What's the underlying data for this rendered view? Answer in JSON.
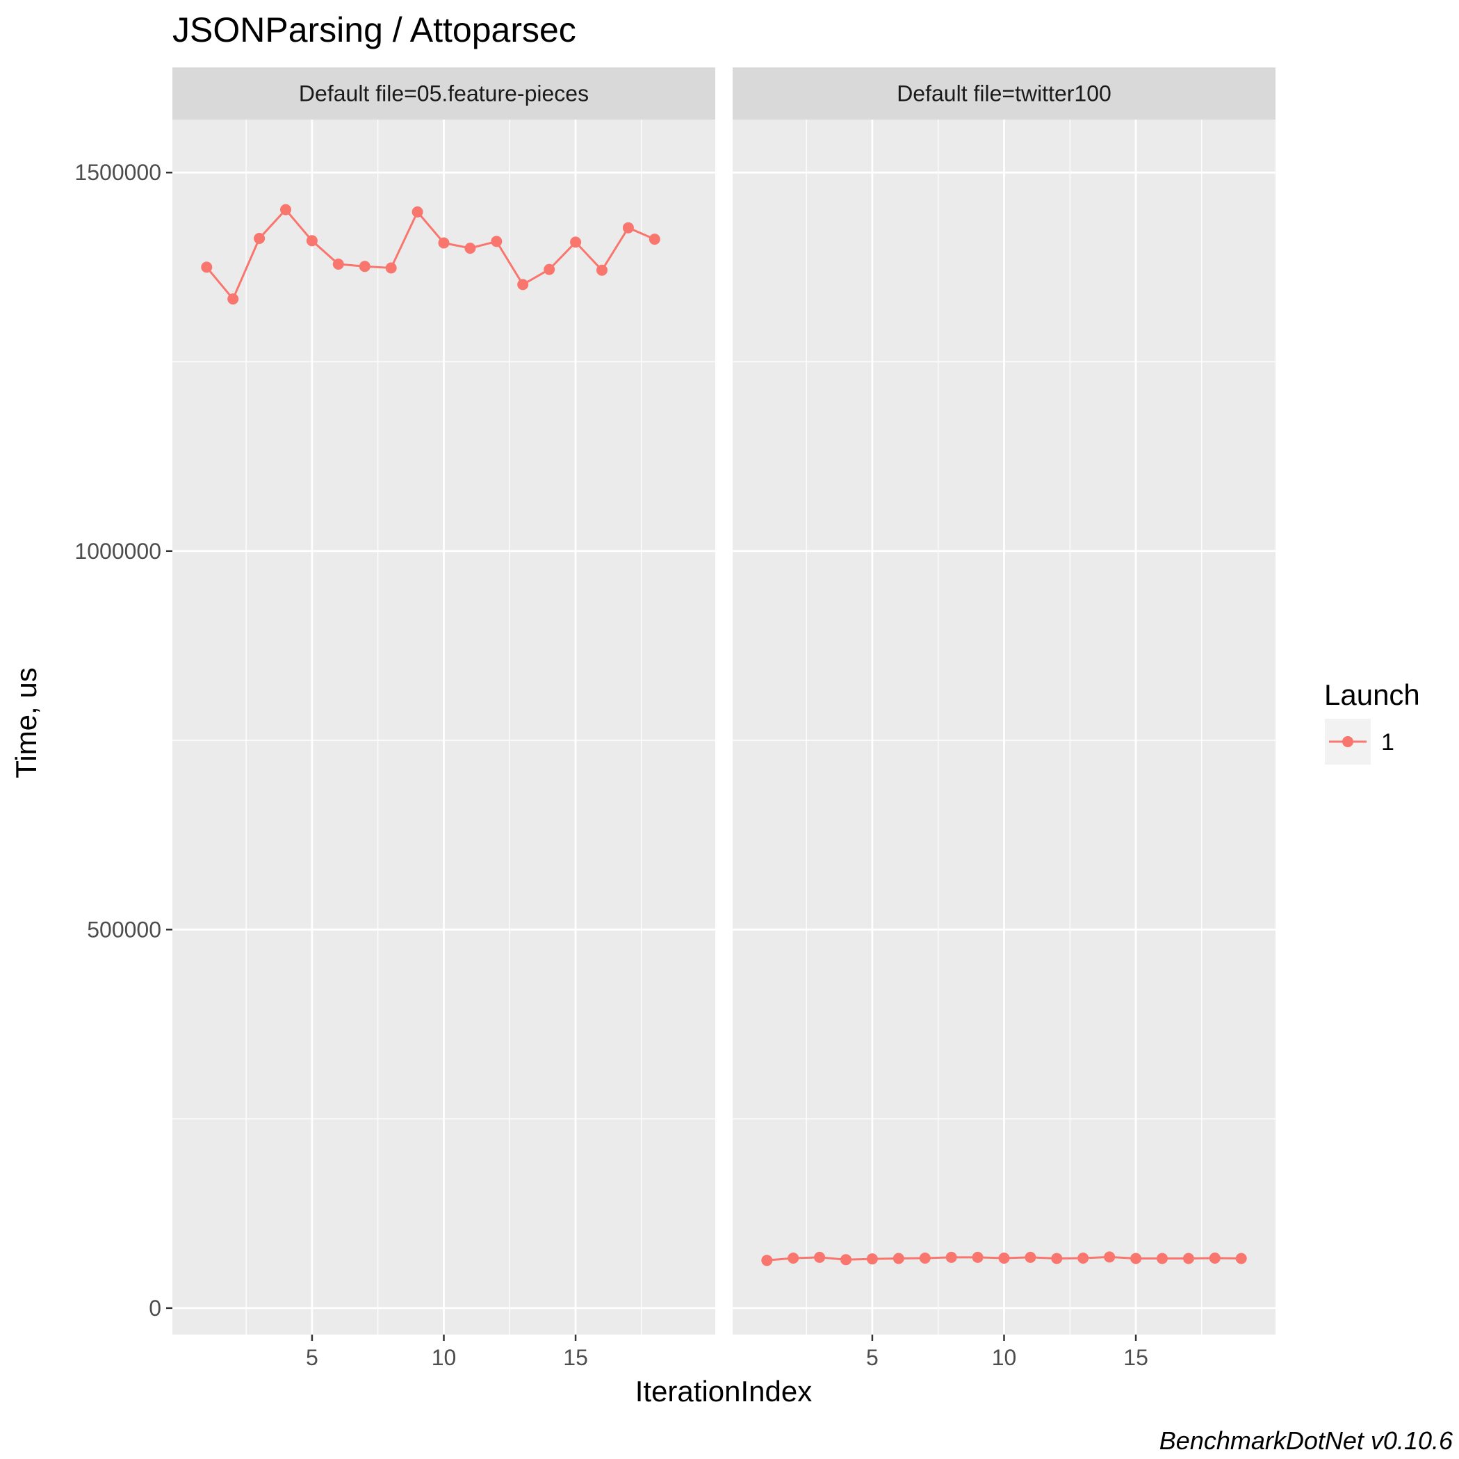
{
  "chart_data": {
    "type": "line",
    "title": "JSONParsing / Attoparsec",
    "xlabel": "IterationIndex",
    "ylabel": "Time, us",
    "caption": "BenchmarkDotNet v0.10.6",
    "ylim": [
      0,
      1500000
    ],
    "yticks": [
      0,
      500000,
      1000000,
      1500000
    ],
    "ytick_labels": [
      "0",
      "500000",
      "1000000",
      "1500000"
    ],
    "xticks": [
      5,
      10,
      15
    ],
    "xtick_labels": [
      "5",
      "10",
      "15"
    ],
    "grid": true,
    "legend": {
      "title": "Launch",
      "position": "right",
      "entries": [
        {
          "label": "1",
          "color": "#F8766D"
        }
      ]
    },
    "series_color": "#F8766D",
    "panels": [
      {
        "strip": "Default file=05.feature-pieces",
        "xlim": [
          1,
          18
        ],
        "series": [
          {
            "name": "1",
            "x": [
              1,
              2,
              3,
              4,
              5,
              6,
              7,
              8,
              9,
              10,
              11,
              12,
              13,
              14,
              15,
              16,
              17,
              18
            ],
            "y": [
              1375000,
              1333000,
              1413000,
              1451000,
              1410000,
              1379000,
              1376000,
              1374000,
              1448000,
              1407000,
              1400000,
              1409000,
              1352000,
              1372000,
              1408000,
              1371000,
              1427000,
              1412000
            ]
          }
        ]
      },
      {
        "strip": "Default file=twitter100",
        "xlim": [
          1,
          19
        ],
        "series": [
          {
            "name": "1",
            "x": [
              1,
              2,
              3,
              4,
              5,
              6,
              7,
              8,
              9,
              10,
              11,
              12,
              13,
              14,
              15,
              16,
              17,
              18,
              19
            ],
            "y": [
              63000,
              66000,
              67000,
              64000,
              65000,
              65500,
              66000,
              67000,
              67000,
              66000,
              67000,
              65500,
              66000,
              67500,
              65500,
              65500,
              65500,
              66000,
              65500
            ]
          }
        ]
      }
    ]
  }
}
